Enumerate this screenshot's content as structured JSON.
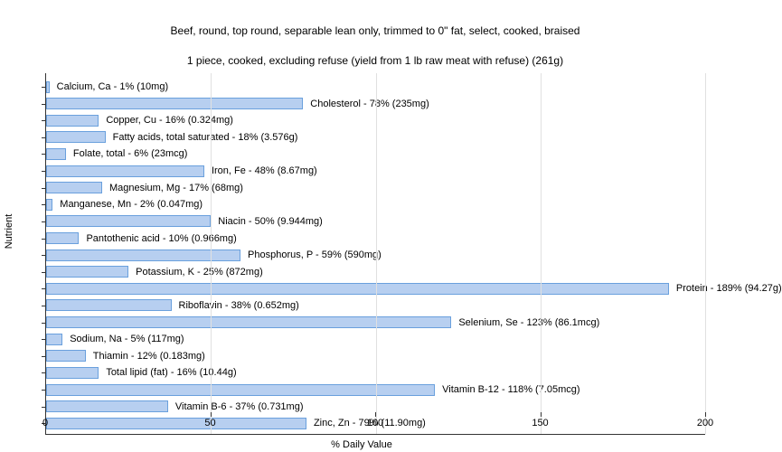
{
  "chart": {
    "type": "bar-horizontal",
    "title_line1": "Beef, round, top round, separable lean only, trimmed to 0\" fat, select, cooked, braised",
    "title_line2": "1 piece, cooked, excluding refuse (yield from 1 lb raw meat with refuse) (261g)",
    "title_fontsize": 12,
    "xlabel": "% Daily Value",
    "ylabel": "Nutrient",
    "label_fontsize": 11,
    "xlim_max": 200,
    "xticks": [
      0,
      50,
      100,
      150,
      200
    ],
    "background_color": "#ffffff",
    "grid_color": "#e0e0e0",
    "bar_fill": "#b7cff0",
    "bar_border": "#6aa0dd",
    "axis_color": "#333333",
    "text_color": "#000000",
    "rows": [
      {
        "label": "Calcium, Ca - 1% (10mg)",
        "value": 1
      },
      {
        "label": "Cholesterol - 78% (235mg)",
        "value": 78
      },
      {
        "label": "Copper, Cu - 16% (0.324mg)",
        "value": 16
      },
      {
        "label": "Fatty acids, total saturated - 18% (3.576g)",
        "value": 18
      },
      {
        "label": "Folate, total - 6% (23mcg)",
        "value": 6
      },
      {
        "label": "Iron, Fe - 48% (8.67mg)",
        "value": 48
      },
      {
        "label": "Magnesium, Mg - 17% (68mg)",
        "value": 17
      },
      {
        "label": "Manganese, Mn - 2% (0.047mg)",
        "value": 2
      },
      {
        "label": "Niacin - 50% (9.944mg)",
        "value": 50
      },
      {
        "label": "Pantothenic acid - 10% (0.966mg)",
        "value": 10
      },
      {
        "label": "Phosphorus, P - 59% (590mg)",
        "value": 59
      },
      {
        "label": "Potassium, K - 25% (872mg)",
        "value": 25
      },
      {
        "label": "Protein - 189% (94.27g)",
        "value": 189
      },
      {
        "label": "Riboflavin - 38% (0.652mg)",
        "value": 38
      },
      {
        "label": "Selenium, Se - 123% (86.1mcg)",
        "value": 123
      },
      {
        "label": "Sodium, Na - 5% (117mg)",
        "value": 5
      },
      {
        "label": "Thiamin - 12% (0.183mg)",
        "value": 12
      },
      {
        "label": "Total lipid (fat) - 16% (10.44g)",
        "value": 16
      },
      {
        "label": "Vitamin B-12 - 118% (7.05mcg)",
        "value": 118
      },
      {
        "label": "Vitamin B-6 - 37% (0.731mg)",
        "value": 37
      },
      {
        "label": "Zinc, Zn - 79% (11.90mg)",
        "value": 79
      }
    ]
  }
}
